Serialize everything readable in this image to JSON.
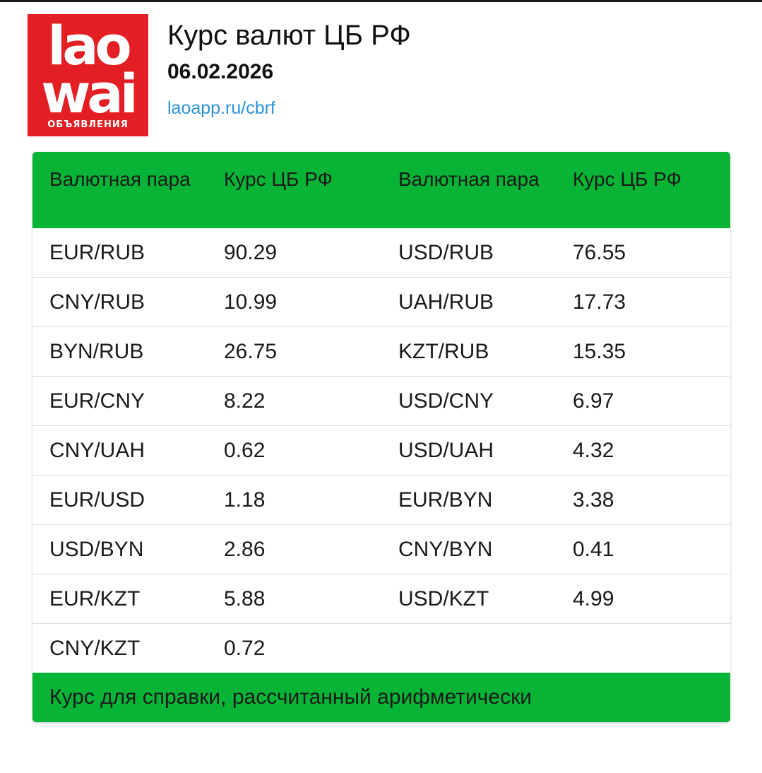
{
  "logo": {
    "line1": "lao",
    "line2": "wai",
    "line3": "ОБЪЯВЛЕНИЯ"
  },
  "header": {
    "title": "Курс валют ЦБ РФ",
    "date": "06.02.2026",
    "link": "laoapp.ru/cbrf"
  },
  "table": {
    "headers": [
      "Валютная пара",
      "Курс ЦБ РФ",
      "Валютная пара",
      "Курс ЦБ РФ"
    ],
    "rows": [
      [
        "EUR/RUB",
        "90.29",
        "USD/RUB",
        "76.55"
      ],
      [
        "CNY/RUB",
        "10.99",
        "UAH/RUB",
        "17.73"
      ],
      [
        "BYN/RUB",
        "26.75",
        "KZT/RUB",
        "15.35"
      ],
      [
        "EUR/CNY",
        "8.22",
        "USD/CNY",
        "6.97"
      ],
      [
        "CNY/UAH",
        "0.62",
        "USD/UAH",
        "4.32"
      ],
      [
        "EUR/USD",
        "1.18",
        "EUR/BYN",
        "3.38"
      ],
      [
        "USD/BYN",
        "2.86",
        "CNY/BYN",
        "0.41"
      ],
      [
        "EUR/KZT",
        "5.88",
        "USD/KZT",
        "4.99"
      ],
      [
        "CNY/KZT",
        "0.72",
        "",
        ""
      ]
    ],
    "footer": "Курс для справки, рассчитанный арифметически"
  },
  "colors": {
    "accent_green": "#08b436",
    "logo_red": "#e31e24",
    "link_blue": "#2b93d6"
  }
}
